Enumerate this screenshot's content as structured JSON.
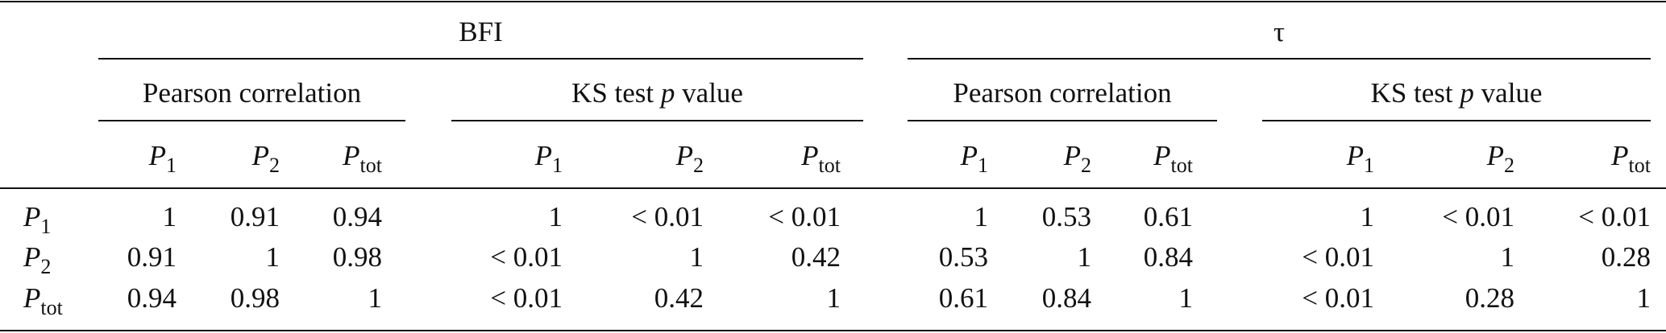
{
  "header": {
    "groups": [
      {
        "title": "BFI",
        "subgroups": [
          {
            "title": [
              "Pearson correlation"
            ],
            "columns": [
              {
                "main": "P",
                "sub": "1"
              },
              {
                "main": "P",
                "sub": "2"
              },
              {
                "main": "P",
                "sub": "tot"
              }
            ]
          },
          {
            "title": [
              "KS test ",
              "p",
              " value"
            ],
            "columns": [
              {
                "main": "P",
                "sub": "1"
              },
              {
                "main": "P",
                "sub": "2"
              },
              {
                "main": "P",
                "sub": "tot"
              }
            ]
          }
        ]
      },
      {
        "title": "τ",
        "subgroups": [
          {
            "title": [
              "Pearson correlation"
            ],
            "columns": [
              {
                "main": "P",
                "sub": "1"
              },
              {
                "main": "P",
                "sub": "2"
              },
              {
                "main": "P",
                "sub": "tot"
              }
            ]
          },
          {
            "title": [
              "KS test ",
              "p",
              " value"
            ],
            "columns": [
              {
                "main": "P",
                "sub": "1"
              },
              {
                "main": "P",
                "sub": "2"
              },
              {
                "main": "P",
                "sub": "tot"
              }
            ]
          }
        ]
      }
    ]
  },
  "rows": [
    {
      "label": {
        "main": "P",
        "sub": "1"
      },
      "cells": [
        1,
        0.91,
        0.94,
        1,
        "< 0.01",
        "< 0.01",
        1,
        0.53,
        0.61,
        1,
        "< 0.01",
        "< 0.01"
      ]
    },
    {
      "label": {
        "main": "P",
        "sub": "2"
      },
      "cells": [
        0.91,
        1,
        0.98,
        "< 0.01",
        1,
        0.42,
        0.53,
        1,
        0.84,
        "< 0.01",
        1,
        0.28
      ]
    },
    {
      "label": {
        "main": "P",
        "sub": "tot"
      },
      "cells": [
        0.94,
        0.98,
        1,
        "< 0.01",
        0.42,
        1,
        0.61,
        0.84,
        1,
        "< 0.01",
        0.28,
        1
      ]
    }
  ]
}
